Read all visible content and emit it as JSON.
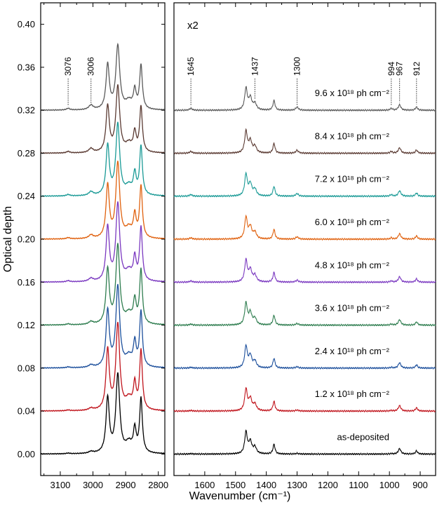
{
  "chart_data": {
    "type": "line",
    "title": "",
    "ylabel": "Optical depth",
    "xlabel": "Wavenumber (cm⁻¹)",
    "ylim": [
      -0.02,
      0.42
    ],
    "y_ticks": [
      "0.00",
      "0.04",
      "0.08",
      "0.12",
      "0.16",
      "0.20",
      "0.24",
      "0.28",
      "0.32",
      "0.36",
      "0.40"
    ],
    "y_tick_values": [
      0.0,
      0.04,
      0.08,
      0.12,
      0.16,
      0.2,
      0.24,
      0.28,
      0.32,
      0.36,
      0.4
    ],
    "left_panel": {
      "xlim": [
        3160,
        2780
      ],
      "x_ticks": [
        "3100",
        "3000",
        "2900",
        "2800"
      ],
      "x_tick_values": [
        3100,
        3000,
        2900,
        2800
      ],
      "annotations": [
        {
          "label": "3076",
          "x": 3076
        },
        {
          "label": "3006",
          "x": 3006
        }
      ]
    },
    "right_panel": {
      "xlim": [
        1700,
        850
      ],
      "scale_label": "x2",
      "x_ticks": [
        "1600",
        "1500",
        "1400",
        "1300",
        "1200",
        "1100",
        "1000",
        "900"
      ],
      "x_tick_values": [
        1600,
        1500,
        1400,
        1300,
        1200,
        1100,
        1000,
        900
      ],
      "annotations": [
        {
          "label": "1645",
          "x": 1645
        },
        {
          "label": "1437",
          "x": 1437
        },
        {
          "label": "1300",
          "x": 1300
        },
        {
          "label": "994",
          "x": 994
        },
        {
          "label": "967",
          "x": 967
        },
        {
          "label": "912",
          "x": 912
        }
      ]
    },
    "series": [
      {
        "name": "as-deposited",
        "dose": "",
        "color": "#000000",
        "offset": 0.0,
        "ch_scale": 0.75
      },
      {
        "name": "1.2 x 10¹⁸ ph cm⁻²",
        "dose": "1.2",
        "color": "#c0141c",
        "offset": 0.04,
        "ch_scale": 0.82
      },
      {
        "name": "2.4 x 10¹⁸ ph cm⁻²",
        "dose": "2.4",
        "color": "#1c4f9c",
        "offset": 0.08,
        "ch_scale": 0.77
      },
      {
        "name": "3.6 x 10¹⁸ ph cm⁻²",
        "dose": "3.6",
        "color": "#2e7d4f",
        "offset": 0.12,
        "ch_scale": 0.75
      },
      {
        "name": "4.8 x 10¹⁸ ph cm⁻²",
        "dose": "4.8",
        "color": "#7a38c0",
        "offset": 0.16,
        "ch_scale": 0.74
      },
      {
        "name": "6.0 x 10¹⁸ ph cm⁻²",
        "dose": "6.0",
        "color": "#e0610e",
        "offset": 0.2,
        "ch_scale": 0.72
      },
      {
        "name": "7.2 x 10¹⁸ ph cm⁻²",
        "dose": "7.2",
        "color": "#1a9a96",
        "offset": 0.24,
        "ch_scale": 0.68
      },
      {
        "name": "8.4 x 10¹⁸ ph cm⁻²",
        "dose": "8.4",
        "color": "#5a3a32",
        "offset": 0.28,
        "ch_scale": 0.63
      },
      {
        "name": "9.6 x 10¹⁸ ph cm⁻²",
        "dose": "9.6",
        "color": "#5a5a5a",
        "offset": 0.32,
        "ch_scale": 0.61
      }
    ],
    "left_peaks": [
      {
        "x": 3076,
        "h": 0.0015,
        "w": 6
      },
      {
        "x": 3006,
        "h": 0.004,
        "w": 8
      },
      {
        "x": 2955,
        "h": 0.068,
        "w": 6
      },
      {
        "x": 2924,
        "h": 0.097,
        "w": 7
      },
      {
        "x": 2890,
        "h": 0.012,
        "w": 12
      },
      {
        "x": 2872,
        "h": 0.028,
        "w": 5
      },
      {
        "x": 2853,
        "h": 0.067,
        "w": 5
      }
    ],
    "right_peaks": [
      {
        "x": 1645,
        "h": 0.0012,
        "w": 5
      },
      {
        "x": 1466,
        "h": 0.02,
        "w": 5
      },
      {
        "x": 1452,
        "h": 0.011,
        "w": 6
      },
      {
        "x": 1437,
        "h": 0.006,
        "w": 6
      },
      {
        "x": 1375,
        "h": 0.009,
        "w": 4
      },
      {
        "x": 1300,
        "h": 0.002,
        "w": 5
      },
      {
        "x": 994,
        "h": 0.0012,
        "w": 4
      },
      {
        "x": 967,
        "h": 0.005,
        "w": 5
      },
      {
        "x": 912,
        "h": 0.003,
        "w": 4
      }
    ]
  }
}
